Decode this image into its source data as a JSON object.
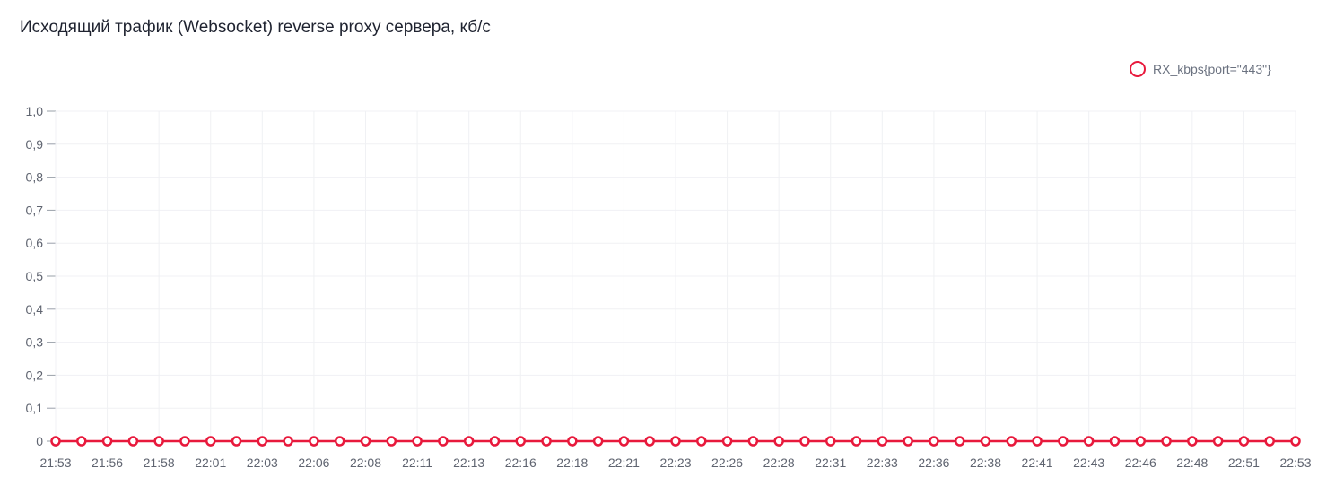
{
  "title": "Исходящий трафик (Websocket) reverse proxy сервера, кб/с",
  "chart_data": {
    "type": "line",
    "title": "Исходящий трафик (Websocket) reverse proxy сервера, кб/с",
    "xlabel": "",
    "ylabel": "",
    "ylim": [
      0,
      1.0
    ],
    "y_ticks": [
      "0",
      "0,1",
      "0,2",
      "0,3",
      "0,4",
      "0,5",
      "0,6",
      "0,7",
      "0,8",
      "0,9",
      "1,0"
    ],
    "x_ticks": [
      "21:53",
      "21:56",
      "21:58",
      "22:01",
      "22:03",
      "22:06",
      "22:08",
      "22:11",
      "22:13",
      "22:16",
      "22:18",
      "22:21",
      "22:23",
      "22:26",
      "22:28",
      "22:31",
      "22:33",
      "22:36",
      "22:38",
      "22:41",
      "22:43",
      "22:46",
      "22:48",
      "22:51",
      "22:53"
    ],
    "grid": true,
    "legend_placement": "top-right",
    "x": [
      "21:53:00",
      "21:54:15",
      "21:55:30",
      "21:56:45",
      "21:58:00",
      "21:59:15",
      "22:00:30",
      "22:01:45",
      "22:03:00",
      "22:04:15",
      "22:05:30",
      "22:06:45",
      "22:08:00",
      "22:09:15",
      "22:10:30",
      "22:11:45",
      "22:13:00",
      "22:14:15",
      "22:15:30",
      "22:16:45",
      "22:18:00",
      "22:19:15",
      "22:20:30",
      "22:21:45",
      "22:23:00",
      "22:24:15",
      "22:25:30",
      "22:26:45",
      "22:28:00",
      "22:29:15",
      "22:30:30",
      "22:31:45",
      "22:33:00",
      "22:34:15",
      "22:35:30",
      "22:36:45",
      "22:38:00",
      "22:39:15",
      "22:40:30",
      "22:41:45",
      "22:43:00",
      "22:44:15",
      "22:45:30",
      "22:46:45",
      "22:48:00",
      "22:49:15",
      "22:50:30",
      "22:51:45",
      "22:53:00"
    ],
    "series": [
      {
        "name": "RX_kbps{port=\"443\"}",
        "color": "#e8193c",
        "values": [
          0,
          0,
          0,
          0,
          0,
          0,
          0,
          0,
          0,
          0,
          0,
          0,
          0,
          0,
          0,
          0,
          0,
          0,
          0,
          0,
          0,
          0,
          0,
          0,
          0,
          0,
          0,
          0,
          0,
          0,
          0,
          0,
          0,
          0,
          0,
          0,
          0,
          0,
          0,
          0,
          0,
          0,
          0,
          0,
          0,
          0,
          0,
          0,
          0
        ]
      }
    ]
  }
}
